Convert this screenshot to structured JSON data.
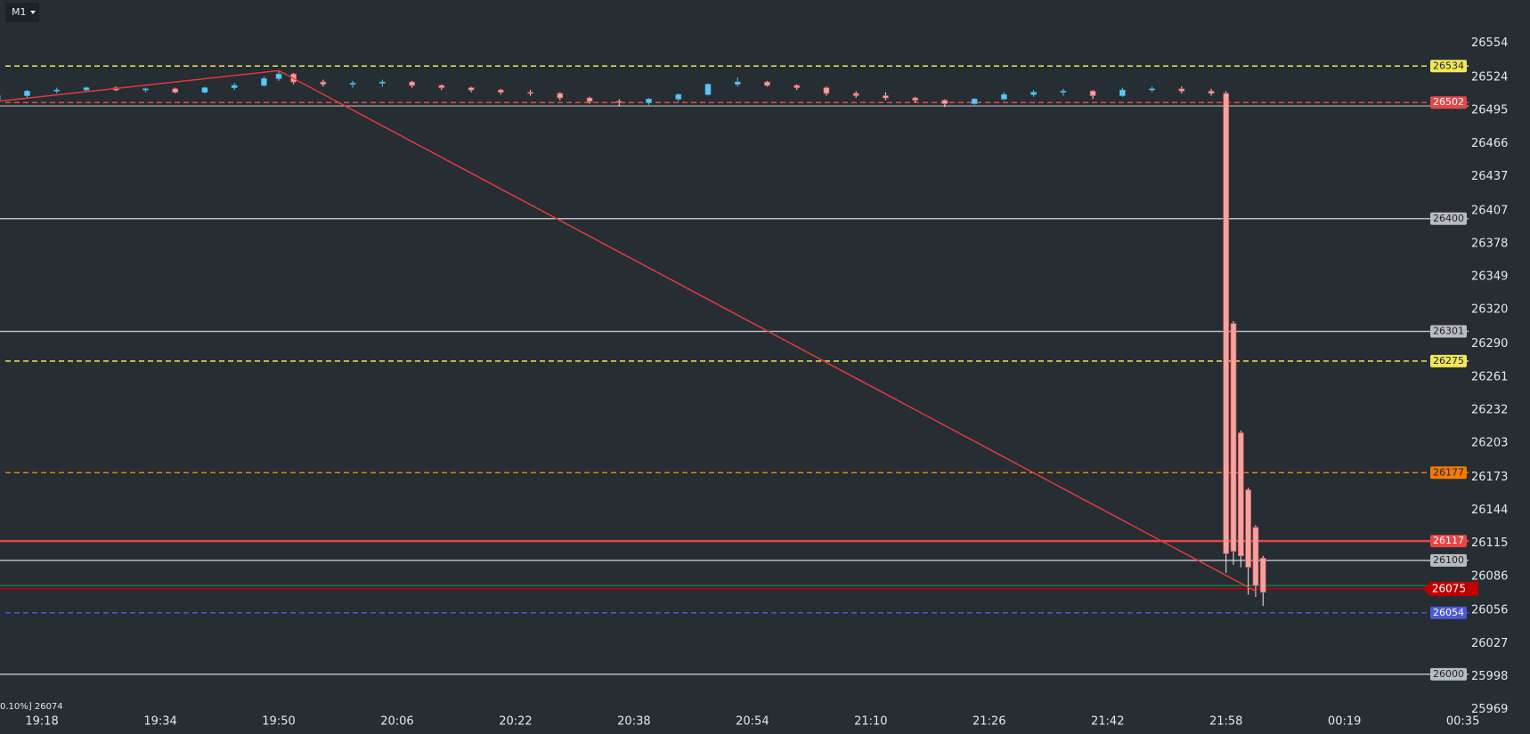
{
  "chart_data": {
    "type": "candlestick",
    "timeframe": "M1",
    "footer_text": "0.10%] 26074",
    "categories": [
      "19:18",
      "19:34",
      "19:50",
      "20:06",
      "20:22",
      "20:38",
      "20:54",
      "21:10",
      "21:26",
      "21:42",
      "21:58",
      "00:19",
      "00:35"
    ],
    "ylim": [
      25969,
      26592
    ],
    "yticks": [
      26554,
      26524,
      26495,
      26466,
      26437,
      26407,
      26378,
      26349,
      26320,
      26290,
      26261,
      26232,
      26203,
      26173,
      26144,
      26115,
      26086,
      26056,
      26027,
      25998,
      25969
    ],
    "up_color": "#5ec8f2",
    "down_color": "#f4a3a3",
    "x": [
      "19:12",
      "19:16",
      "19:20",
      "19:24",
      "19:28",
      "19:32",
      "19:36",
      "19:40",
      "19:44",
      "19:48",
      "19:50",
      "19:52",
      "19:56",
      "20:00",
      "20:04",
      "20:08",
      "20:12",
      "20:16",
      "20:20",
      "20:24",
      "20:28",
      "20:32",
      "20:36",
      "20:40",
      "20:44",
      "20:48",
      "20:52",
      "20:56",
      "21:00",
      "21:04",
      "21:08",
      "21:12",
      "21:16",
      "21:20",
      "21:24",
      "21:28",
      "21:32",
      "21:36",
      "21:40",
      "21:44",
      "21:48",
      "21:52",
      "21:56",
      "21:58",
      "21:59",
      "22:00",
      "22:01",
      "22:02",
      "22:03"
    ],
    "open": [
      26504,
      26508,
      26512,
      26513,
      26515,
      26513,
      26514,
      26511,
      26515,
      26517,
      26523,
      26527,
      26520,
      26518,
      26519,
      26520,
      26517,
      26515,
      26513,
      26511,
      26510,
      26506,
      26503,
      26502,
      26505,
      26509,
      26518,
      26520,
      26517,
      26515,
      26510,
      26508,
      26506,
      26504,
      26501,
      26505,
      26509,
      26511,
      26512,
      26508,
      26513,
      26514,
      26512,
      26510,
      26308,
      26212,
      26162,
      26129,
      26102
    ],
    "high": [
      26510,
      26513,
      26515,
      26516,
      26516,
      26515,
      26515,
      26516,
      26519,
      26525,
      26530,
      26528,
      26522,
      26521,
      26522,
      26521,
      26518,
      26516,
      26514,
      26513,
      26511,
      26507,
      26505,
      26506,
      26510,
      26519,
      26524,
      26521,
      26518,
      26516,
      26512,
      26511,
      26507,
      26505,
      26506,
      26511,
      26513,
      26514,
      26513,
      26515,
      26516,
      26516,
      26514,
      26512,
      26310,
      26214,
      26164,
      26131,
      26104
    ],
    "low": [
      26502,
      26506,
      26510,
      26511,
      26512,
      26511,
      26510,
      26510,
      26513,
      26516,
      26521,
      26518,
      26516,
      26515,
      26516,
      26515,
      26513,
      26511,
      26509,
      26508,
      26504,
      26501,
      26499,
      26500,
      26503,
      26508,
      26516,
      26516,
      26513,
      26508,
      26506,
      26504,
      26502,
      26498,
      26500,
      26504,
      26507,
      26508,
      26505,
      26507,
      26511,
      26510,
      26508,
      26089,
      26096,
      26094,
      26070,
      26068,
      26060
    ],
    "close": [
      26508,
      26512,
      26513,
      26515,
      26513,
      26514,
      26511,
      26515,
      26517,
      26523,
      26527,
      26520,
      26518,
      26519,
      26520,
      26517,
      26515,
      26513,
      26511,
      26510,
      26506,
      26503,
      26502,
      26505,
      26509,
      26518,
      26520,
      26517,
      26515,
      26510,
      26508,
      26506,
      26504,
      26501,
      26505,
      26509,
      26511,
      26512,
      26508,
      26513,
      26514,
      26512,
      26510,
      26106,
      26108,
      26104,
      26094,
      26078,
      26072
    ],
    "trendline": {
      "color": "#e03a3a",
      "x": [
        "19:12",
        "19:50",
        "22:02"
      ],
      "values": [
        26503,
        26530,
        26073
      ]
    },
    "levels": [
      {
        "value": 26534,
        "color": "#f2e65a",
        "label_text": "#222222",
        "style": "dashed"
      },
      {
        "value": 26502,
        "color": "#e84545",
        "label_text": "#ffffff",
        "style": "dashed"
      },
      {
        "value": 26400,
        "color": "#b8bcc0",
        "label_text": "#222222",
        "style": "solid"
      },
      {
        "value": 26301,
        "color": "#b8bcc0",
        "label_text": "#222222",
        "style": "solid"
      },
      {
        "value": 26275,
        "color": "#f2e65a",
        "label_text": "#222222",
        "style": "dashed"
      },
      {
        "value": 26177,
        "color": "#f07c00",
        "label_text": "#222222",
        "style": "dashed"
      },
      {
        "value": 26117,
        "color": "#e84545",
        "label_text": "#ffffff",
        "style": "thick"
      },
      {
        "value": 26100,
        "color": "#b8bcc0",
        "label_text": "#222222",
        "style": "solid"
      },
      {
        "value": 26075,
        "color": "#c00000",
        "label_text": "#ffffff",
        "style": "price"
      },
      {
        "value": 26054,
        "color": "#4a5bd4",
        "label_text": "#ffffff",
        "style": "dashed"
      },
      {
        "value": 26000,
        "color": "#b8bcc0",
        "label_text": "#222222",
        "style": "solid"
      }
    ],
    "plain_lines": [
      {
        "value": 26499,
        "color": "#b8bcc0"
      },
      {
        "value": 26078,
        "color": "#1f8a4c"
      }
    ]
  }
}
